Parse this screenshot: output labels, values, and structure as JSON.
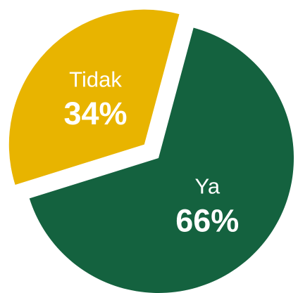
{
  "chart_data": {
    "type": "pie",
    "categories": [
      "Ya",
      "Tidak"
    ],
    "values": [
      66,
      34
    ],
    "value_labels": [
      "66%",
      "34%"
    ],
    "colors": [
      "#14623f",
      "#e8b400"
    ]
  }
}
